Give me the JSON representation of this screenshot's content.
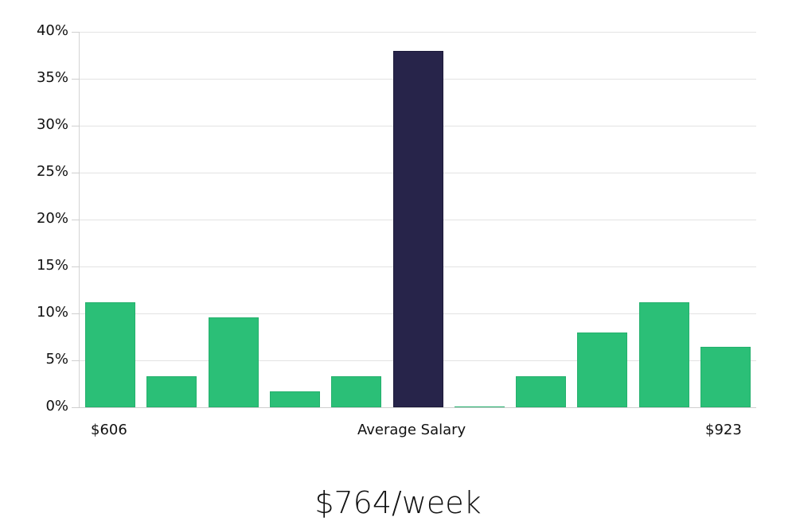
{
  "chart_data": {
    "type": "bar",
    "title": "",
    "xlabel": "Average Salary",
    "ylabel": "",
    "ylim": [
      0,
      40
    ],
    "yticks": [
      "0%",
      "5%",
      "10%",
      "15%",
      "20%",
      "25%",
      "30%",
      "35%",
      "40%"
    ],
    "grid": true,
    "legend": null,
    "categories": [
      "bin1",
      "bin2",
      "bin3",
      "bin4",
      "bin5",
      "bin6",
      "bin7",
      "bin8",
      "bin9",
      "bin10",
      "bin11"
    ],
    "values": [
      11.2,
      3.3,
      9.6,
      1.7,
      3.3,
      38.0,
      0.1,
      3.3,
      8.0,
      11.2,
      6.4
    ],
    "highlight_index": 5,
    "x_range_labels": {
      "min": "$606",
      "max": "$923"
    },
    "colors": {
      "default": "#2bbf77",
      "highlight": "#27244a"
    }
  },
  "axis": {
    "x_min_label": "$606",
    "x_center_label": "Average Salary",
    "x_max_label": "$923"
  },
  "summary": {
    "value": "$764/week"
  }
}
